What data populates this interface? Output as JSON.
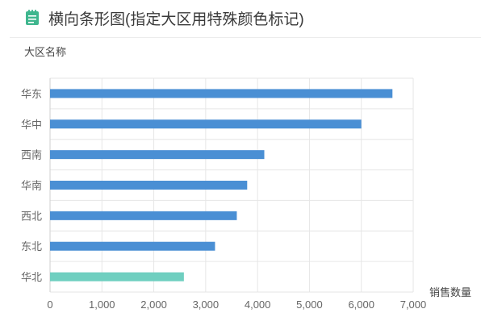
{
  "header": {
    "title": "横向条形图(指定大区用特殊颜色标记)",
    "icon": "notepad-icon",
    "icon_color": "#3fb68e"
  },
  "colors": {
    "default_bar": "#4a8fd4",
    "highlight_bar": "#6fcfc0",
    "grid": "#e6e6e6"
  },
  "chart_data": {
    "type": "bar",
    "orientation": "horizontal",
    "categories": [
      "华东",
      "华中",
      "西南",
      "华南",
      "西北",
      "东北",
      "华北"
    ],
    "values": [
      6600,
      6000,
      4130,
      3800,
      3600,
      3180,
      2580
    ],
    "highlight": [
      "华北"
    ],
    "ylabel": "大区名称",
    "xlabel": "销售数量",
    "xlim": [
      0,
      7000
    ],
    "x_ticks": [
      "0",
      "1,000",
      "2,000",
      "3,000",
      "4,000",
      "5,000",
      "6,000",
      "7,000"
    ],
    "grid": true
  }
}
